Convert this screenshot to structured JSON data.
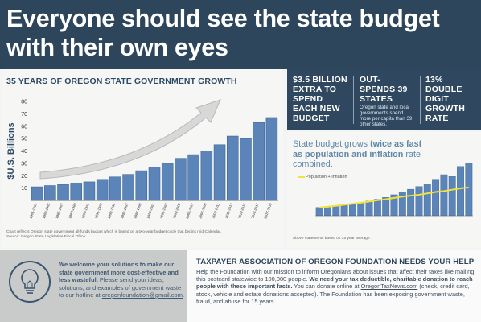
{
  "header": {
    "title": "Everyone should see the state budget with their own eyes"
  },
  "chart_data": {
    "type": "bar",
    "title": "35 YEARS OF OREGON STATE GOVERNMENT GROWTH",
    "ylabel": "$U.S. Billions",
    "ylim": [
      0,
      80
    ],
    "yticks": [
      10,
      20,
      30,
      40,
      50,
      60,
      70,
      80
    ],
    "categories": [
      "1981-1983",
      "1983-1985",
      "1985-1987",
      "1987-1989",
      "1989-1991",
      "1991-1993",
      "1993-1995",
      "1995-1997",
      "1997-1999",
      "1999-2001",
      "2001-2003",
      "2003-2005",
      "2005-2007",
      "2007-2009",
      "2009-2011",
      "2011-2013",
      "2013-2015",
      "2015-2017",
      "2017-2019"
    ],
    "values": [
      11,
      12,
      13,
      14,
      15,
      17,
      19,
      21,
      24,
      27,
      30,
      34,
      37,
      40,
      45,
      52,
      50,
      63,
      67
    ],
    "note": "Chart reflects Oregon state government all-funds budget which is based on a two-year budget cycle that begins mid-Calendar.",
    "source": "Source: Oregon State Legislative Fiscal Office.",
    "color": "#5b84b8"
  },
  "stats": [
    {
      "big": "$3.5 BILLION EXTRA TO SPEND EACH NEW BUDGET",
      "small": ""
    },
    {
      "big": "OUT-SPENDS 39 STATES",
      "small": "Oregon state and local governments spend more per capita than 39 other states."
    },
    {
      "big": "13% DOUBLE DIGIT GROWTH RATE",
      "small": ""
    }
  ],
  "mini_chart": {
    "headline_1": "State budget grows ",
    "headline_bold_1": "twice as fast as population and inflation",
    "headline_2": " rate combined.",
    "legend": "Population + Inflation",
    "footnote": "Above statements based on 35 year average.",
    "values": [
      9,
      10,
      11,
      12,
      13,
      14,
      16,
      18,
      20,
      23,
      26,
      29,
      32,
      35,
      40,
      45,
      43,
      54,
      58
    ],
    "line": [
      9,
      9.8,
      10.8,
      12,
      13,
      14.2,
      15.5,
      17,
      18,
      19.5,
      21,
      22,
      23,
      24.5,
      26,
      27,
      28.5,
      30,
      31
    ],
    "bar_color": "#5b84b8",
    "line_color": "#f0e23a"
  },
  "welcome": {
    "bold": "We welcome your solutions to make our state government more cost-effective and less wasteful.",
    "body": " Please send your ideas, solutions, and examples of government waste to our hotline at ",
    "email": "oregonfoundation@gmail.com",
    "end": "."
  },
  "taxpayer": {
    "title": "TAXPAYER ASSOCIATION OF OREGON FOUNDATION NEEDS YOUR HELP",
    "body_1": "Help the Foundation with our mission to inform Oregonians about issues that affect their taxes like mailing this postcard statewide to 100,000 people. ",
    "body_bold": "We need your tax deductible, charitable donation to reach people with these important facts.",
    "body_2": " You can donate online at ",
    "link": "OregonTaxNews.com",
    "body_3": " (check, credit card, stock, vehicle and estate donations accepted). The Foundation has been exposing government waste, fraud, and abuse for 15 years."
  }
}
